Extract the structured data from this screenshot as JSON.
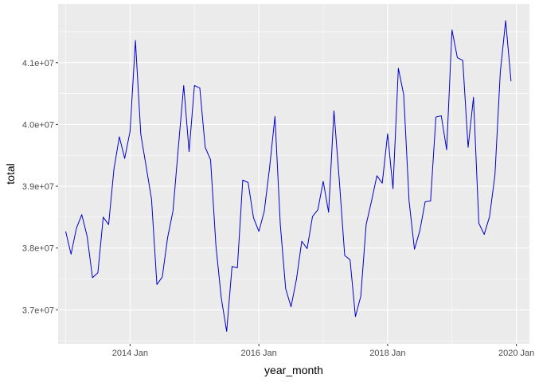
{
  "chart_data": {
    "type": "line",
    "xlabel": "year_month",
    "ylabel": "total",
    "x_ticks": [
      {
        "label": "2014 Jan",
        "year": 2014,
        "month": 1
      },
      {
        "label": "2016 Jan",
        "year": 2016,
        "month": 1
      },
      {
        "label": "2018 Jan",
        "year": 2018,
        "month": 1
      },
      {
        "label": "2020 Jan",
        "year": 2020,
        "month": 1
      }
    ],
    "y_ticks": [
      {
        "label": "3.7e+07",
        "value": 37000000
      },
      {
        "label": "3.8e+07",
        "value": 38000000
      },
      {
        "label": "3.9e+07",
        "value": 39000000
      },
      {
        "label": "4.0e+07",
        "value": 40000000
      },
      {
        "label": "4.1e+07",
        "value": 41000000
      }
    ],
    "x_range": [
      "2012-11-19",
      "2020-03-14"
    ],
    "ylim": [
      36450000,
      41950000
    ],
    "grid": true,
    "series": [
      {
        "color": "#0000cd",
        "x": [
          "2013-01",
          "2013-02",
          "2013-03",
          "2013-04",
          "2013-05",
          "2013-06",
          "2013-07",
          "2013-08",
          "2013-09",
          "2013-10",
          "2013-11",
          "2013-12",
          "2014-01",
          "2014-02",
          "2014-03",
          "2014-04",
          "2014-05",
          "2014-06",
          "2014-07",
          "2014-08",
          "2014-09",
          "2014-10",
          "2014-11",
          "2014-12",
          "2015-01",
          "2015-02",
          "2015-03",
          "2015-04",
          "2015-05",
          "2015-06",
          "2015-07",
          "2015-08",
          "2015-09",
          "2015-10",
          "2015-11",
          "2015-12",
          "2016-01",
          "2016-02",
          "2016-03",
          "2016-04",
          "2016-05",
          "2016-06",
          "2016-07",
          "2016-08",
          "2016-09",
          "2016-10",
          "2016-11",
          "2016-12",
          "2017-01",
          "2017-02",
          "2017-03",
          "2017-04",
          "2017-05",
          "2017-06",
          "2017-07",
          "2017-08",
          "2017-09",
          "2017-10",
          "2017-11",
          "2017-12",
          "2018-01",
          "2018-02",
          "2018-03",
          "2018-04",
          "2018-05",
          "2018-06",
          "2018-07",
          "2018-08",
          "2018-09",
          "2018-10",
          "2018-11",
          "2018-12",
          "2019-01",
          "2019-02",
          "2019-03",
          "2019-04",
          "2019-05",
          "2019-06",
          "2019-07",
          "2019-08",
          "2019-09",
          "2019-10",
          "2019-11",
          "2019-12"
        ],
        "y": [
          38270000,
          37900000,
          38320000,
          38540000,
          38190000,
          37520000,
          37600000,
          38500000,
          38380000,
          39280000,
          39800000,
          39450000,
          39890000,
          41360000,
          39840000,
          39320000,
          38790000,
          37410000,
          37530000,
          38170000,
          38600000,
          39630000,
          40630000,
          39560000,
          40630000,
          40590000,
          39630000,
          39430000,
          38040000,
          37190000,
          36650000,
          37700000,
          37680000,
          39100000,
          39060000,
          38490000,
          38270000,
          38590000,
          39300000,
          40130000,
          38380000,
          37340000,
          37050000,
          37490000,
          38110000,
          37990000,
          38510000,
          38620000,
          39080000,
          38580000,
          40220000,
          39090000,
          37880000,
          37810000,
          36890000,
          37220000,
          38380000,
          38760000,
          39170000,
          39050000,
          39850000,
          38960000,
          40910000,
          40480000,
          38760000,
          37980000,
          38280000,
          38750000,
          38760000,
          40120000,
          40140000,
          39590000,
          41530000,
          41080000,
          41040000,
          39630000,
          40440000,
          38400000,
          38220000,
          38510000,
          39180000,
          40850000,
          41680000,
          40700000
        ]
      }
    ]
  }
}
